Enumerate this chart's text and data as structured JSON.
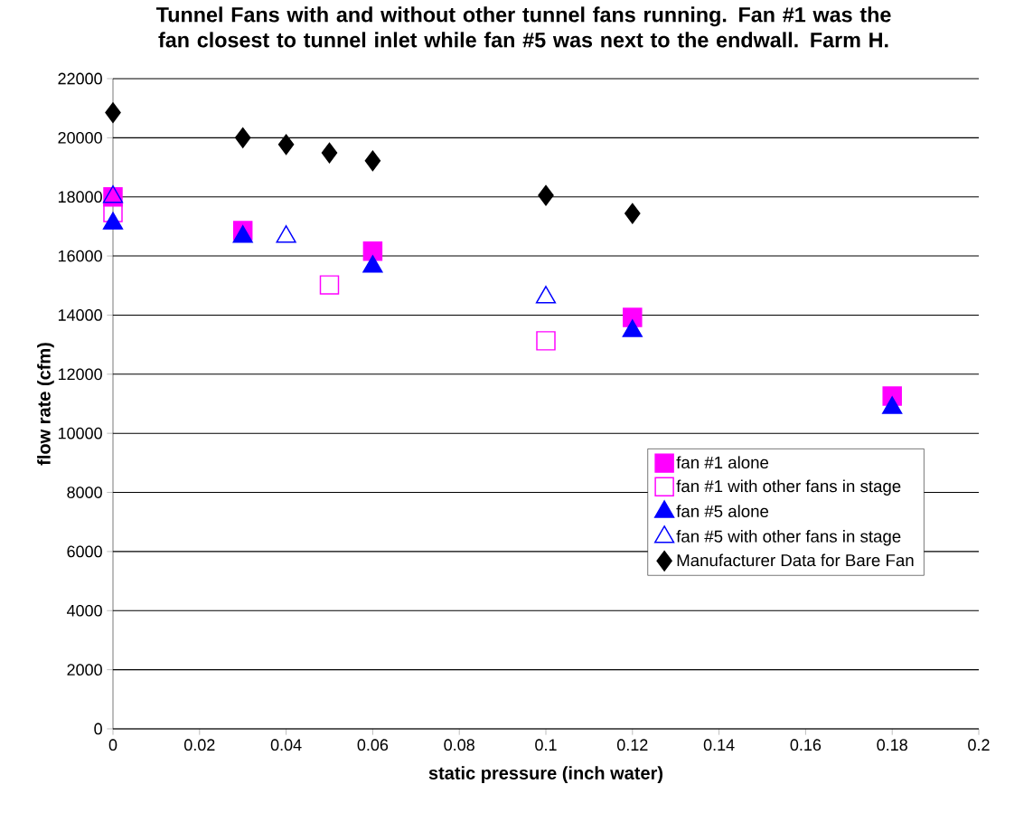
{
  "chart_data": {
    "type": "scatter",
    "title": "Tunnel Fans with and without other tunnel fans running. Fan #1 was the fan closest to tunnel inlet while fan #5 was next to the endwall. Farm H.",
    "xlabel": "static pressure (inch water)",
    "ylabel": "flow rate (cfm)",
    "xlim": [
      0,
      0.2
    ],
    "xticks": [
      0,
      0.02,
      0.04,
      0.06,
      0.08,
      0.1,
      0.12,
      0.14,
      0.16,
      0.18,
      0.2
    ],
    "ylim": [
      0,
      22000
    ],
    "yticks": [
      0,
      2000,
      4000,
      6000,
      8000,
      10000,
      12000,
      14000,
      16000,
      18000,
      20000,
      22000
    ],
    "grid": "y",
    "legend": "bottom right",
    "series": [
      {
        "name": "fan #1 alone",
        "color": "#ff00ff",
        "marker": "square",
        "x": [
          0,
          0.03,
          0.06,
          0.12,
          0.18
        ],
        "values": [
          18000,
          16860,
          16160,
          13920,
          11260
        ]
      },
      {
        "name": "fan #1 with other fans in stage",
        "color": "#ff00ff",
        "marker": "square",
        "x": [
          0,
          0.05,
          0.1
        ],
        "values": [
          17470,
          15020,
          13130
        ]
      },
      {
        "name": "fan #5 alone",
        "color": "#0000ff",
        "marker": "triangle",
        "x": [
          0,
          0.03,
          0.06,
          0.12,
          0.18
        ],
        "values": [
          17100,
          16650,
          15640,
          13460,
          10860
        ]
      },
      {
        "name": "fan #5 with other fans in stage",
        "color": "#0000ff",
        "marker": "triangle",
        "x": [
          0,
          0.04,
          0.1
        ],
        "values": [
          18000,
          16650,
          14600
        ]
      },
      {
        "name": "Manufacturer Data for Bare Fan",
        "color": "#000000",
        "marker": "diamond",
        "x": [
          0,
          0.03,
          0.04,
          0.05,
          0.06,
          0.1,
          0.12
        ],
        "values": [
          20850,
          20000,
          19770,
          19490,
          19220,
          18050,
          17440
        ]
      }
    ]
  }
}
